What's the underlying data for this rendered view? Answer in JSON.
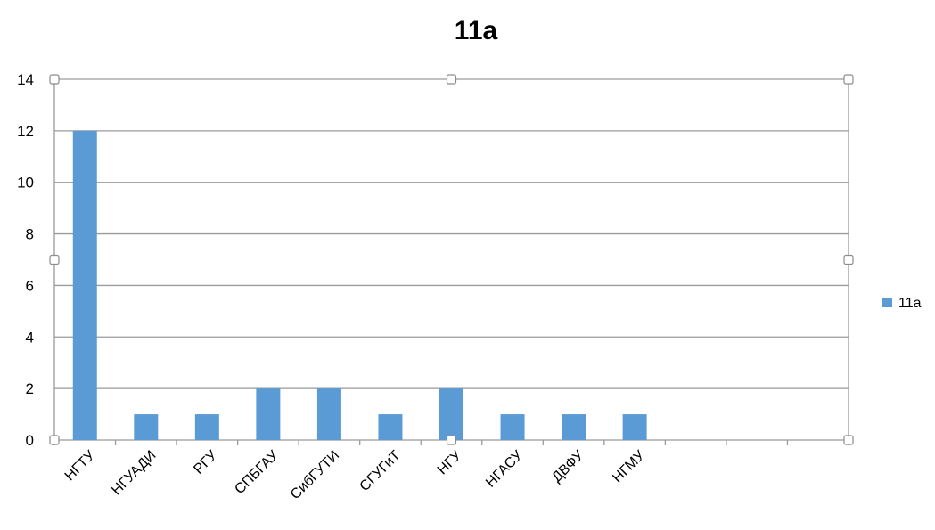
{
  "chart_data": {
    "type": "bar",
    "title": "11a",
    "xlabel": "",
    "ylabel": "",
    "categories": [
      "НГТУ",
      "НГУАДИ",
      "РГУ",
      "СПБГАУ",
      "СибГУТИ",
      "СГУГиТ",
      "НГУ",
      "НГАСУ",
      "ДВФУ",
      "НГМУ",
      "",
      "",
      ""
    ],
    "series": [
      {
        "name": "11a",
        "color": "#5b9bd5",
        "values": [
          12,
          1,
          1,
          2,
          2,
          1,
          2,
          1,
          1,
          1,
          null,
          null,
          null
        ]
      }
    ],
    "ylim": [
      0,
      14
    ],
    "yticks": [
      0,
      2,
      4,
      6,
      8,
      10,
      12,
      14
    ],
    "grid": true,
    "legend": "right"
  }
}
